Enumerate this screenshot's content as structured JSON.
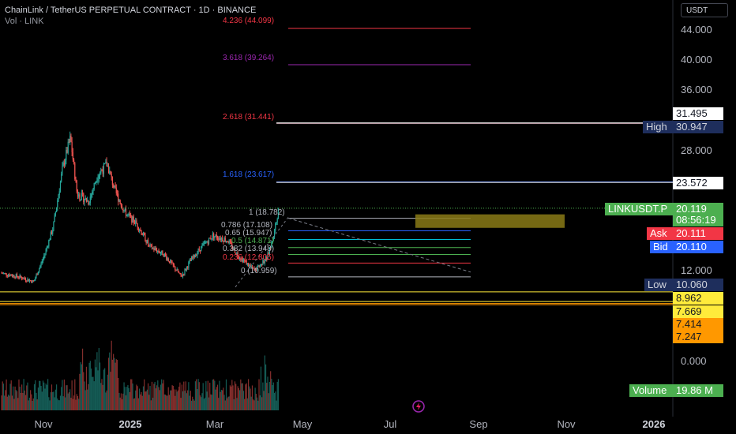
{
  "header": {
    "title": "ChainLink / TetherUS PERPETUAL CONTRACT · 1D · BINANCE",
    "subtitle": "Vol · LINK"
  },
  "currency_button": "USDT",
  "price_tags": {
    "ext1": "31.495",
    "high_label": "High",
    "high_value": "30.947",
    "ext2": "23.572",
    "symbol": "LINKUSDT.P",
    "last": "20.119",
    "countdown": "08:56:19",
    "ask_label": "Ask",
    "ask_value": "20.111",
    "bid_label": "Bid",
    "bid_value": "20.110",
    "low_label": "Low",
    "low_value": "10.060",
    "s1": "8.962",
    "s2": "7.669",
    "s3": "7.414",
    "s4": "7.247",
    "vol_label": "Volume",
    "vol_value": "19.86 M"
  },
  "colors": {
    "up": "#26a69a",
    "down": "#ef5350",
    "price_line": "#4caf50",
    "high_low_bg": "#1e2e5c",
    "ask": "#f23645",
    "bid": "#2962ff",
    "yellow": "#ffeb3b",
    "orange": "#ff9800",
    "zone": "#8a7a16"
  },
  "chart_data": {
    "type": "candlestick",
    "title": "ChainLink / TetherUS PERPETUAL CONTRACT · 1D · BINANCE",
    "x_labels": [
      "Nov",
      "2025",
      "Mar",
      "May",
      "Jul",
      "Sep",
      "Nov",
      "2026"
    ],
    "y_ticks": [
      "44.000",
      "40.000",
      "36.000",
      "28.000",
      "12.000"
    ],
    "volume_ticks": [
      "0.000"
    ],
    "price_path": [
      {
        "date": "2024-10-01",
        "price": 11.5
      },
      {
        "date": "2024-10-20",
        "price": 11.0
      },
      {
        "date": "2024-11-05",
        "price": 10.3
      },
      {
        "date": "2024-11-15",
        "price": 13.5
      },
      {
        "date": "2024-11-25",
        "price": 17.5
      },
      {
        "date": "2024-12-05",
        "price": 25.5
      },
      {
        "date": "2024-12-13",
        "price": 29.5
      },
      {
        "date": "2024-12-20",
        "price": 22.0
      },
      {
        "date": "2025-01-01",
        "price": 21.0
      },
      {
        "date": "2025-01-10",
        "price": 24.5
      },
      {
        "date": "2025-01-20",
        "price": 26.0
      },
      {
        "date": "2025-01-28",
        "price": 22.5
      },
      {
        "date": "2025-02-08",
        "price": 19.5
      },
      {
        "date": "2025-02-20",
        "price": 18.0
      },
      {
        "date": "2025-03-05",
        "price": 15.0
      },
      {
        "date": "2025-03-20",
        "price": 14.0
      },
      {
        "date": "2025-04-07",
        "price": 11.0
      },
      {
        "date": "2025-04-15",
        "price": 12.8
      },
      {
        "date": "2025-04-25",
        "price": 14.5
      },
      {
        "date": "2025-05-10",
        "price": 16.5
      },
      {
        "date": "2025-05-25",
        "price": 15.8
      },
      {
        "date": "2025-06-05",
        "price": 13.8
      },
      {
        "date": "2025-06-22",
        "price": 11.8
      },
      {
        "date": "2025-07-05",
        "price": 13.5
      },
      {
        "date": "2025-07-12",
        "price": 16.5
      },
      {
        "date": "2025-07-17",
        "price": 20.1
      }
    ],
    "fib_retracement": [
      {
        "label": "1 (18.782)",
        "value": 18.782
      },
      {
        "label": "0.786 (17.108)",
        "value": 17.108
      },
      {
        "label": "0.65 (15.947)",
        "value": 15.947
      },
      {
        "label": "0.5 (14.871)",
        "value": 14.871
      },
      {
        "label": "0.382 (13.948)",
        "value": 13.948
      },
      {
        "label": "0.236 (12.805)",
        "value": 12.805
      },
      {
        "label": "0 (10.959)",
        "value": 10.959
      }
    ],
    "fib_extensions": [
      {
        "label": "1.618 (23.617)",
        "value": 23.617
      },
      {
        "label": "2.618 (31.441)",
        "value": 31.441
      },
      {
        "label": "3.618 (39.264)",
        "value": 39.264
      },
      {
        "label": "4.236 (44.099)",
        "value": 44.099
      }
    ],
    "horizontal_levels": [
      31.495,
      23.572,
      8.962,
      7.669,
      7.414,
      7.247
    ],
    "last_price": 20.119,
    "high": 30.947,
    "low": 10.06
  }
}
